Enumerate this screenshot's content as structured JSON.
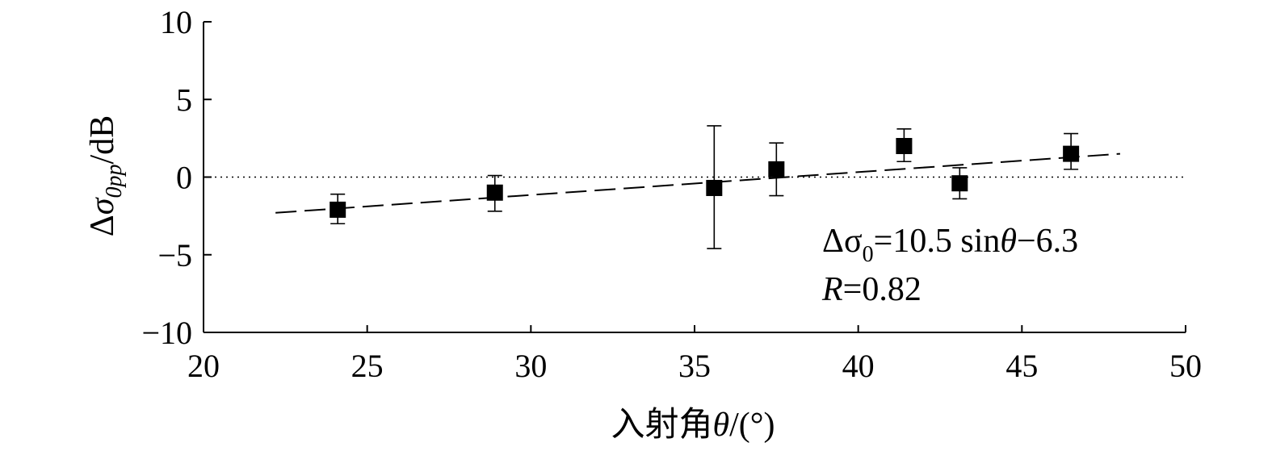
{
  "chart_data": {
    "type": "scatter",
    "xlabel": "入射角θ/(°)",
    "ylabel": "Δσ0pp/dB",
    "xlim": [
      20,
      50
    ],
    "ylim": [
      -10,
      10
    ],
    "x_ticks": [
      20,
      25,
      30,
      35,
      40,
      45,
      50
    ],
    "y_ticks": [
      10,
      5,
      0,
      -5,
      -10
    ],
    "x_tick_labels": [
      "20",
      "25",
      "30",
      "35",
      "40",
      "45",
      "50"
    ],
    "y_tick_labels": [
      "10",
      "5",
      "0",
      "−5",
      "−10"
    ],
    "grid": false,
    "reference_line": {
      "y": 0,
      "style": "dotted"
    },
    "points": [
      {
        "x": 24.1,
        "y": -2.1,
        "err_low": -3.0,
        "err_high": -1.1
      },
      {
        "x": 28.9,
        "y": -1.0,
        "err_low": -2.2,
        "err_high": 0.1
      },
      {
        "x": 35.6,
        "y": -0.7,
        "err_low": -4.6,
        "err_high": 3.3
      },
      {
        "x": 37.5,
        "y": 0.5,
        "err_low": -1.2,
        "err_high": 2.2
      },
      {
        "x": 41.4,
        "y": 2.0,
        "err_low": 1.0,
        "err_high": 3.1
      },
      {
        "x": 43.1,
        "y": -0.4,
        "err_low": -1.4,
        "err_high": 0.6
      },
      {
        "x": 46.5,
        "y": 1.5,
        "err_low": 0.5,
        "err_high": 2.8
      }
    ],
    "fit_line": {
      "style": "dashed",
      "x": [
        22.2,
        48.0
      ],
      "y": [
        -2.3,
        1.5
      ]
    },
    "annotations": {
      "equation_lead": "Δσ",
      "equation_sub": "0",
      "equation_mid": "=10.5 sin",
      "equation_theta": "θ",
      "equation_tail": "−6.3",
      "r_symbol": "R",
      "r_value": "=0.82"
    }
  }
}
